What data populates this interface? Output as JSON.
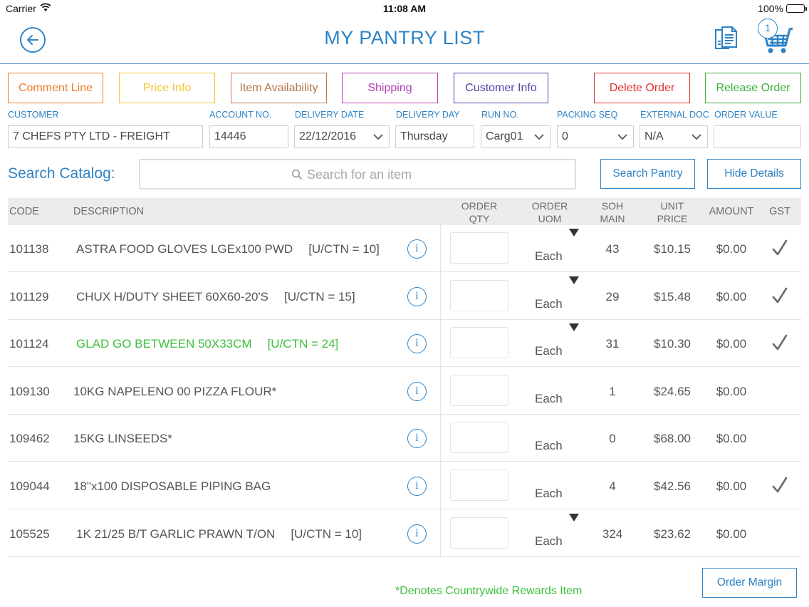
{
  "status_bar": {
    "carrier": "Carrier",
    "time": "11:08 AM",
    "battery": "100%"
  },
  "header": {
    "title": "MY PANTRY LIST",
    "cart_count": "1"
  },
  "actions": {
    "comment_line": "Comment Line",
    "price_info": "Price Info",
    "item_availability": "Item Availability",
    "shipping": "Shipping",
    "customer_info": "Customer Info",
    "delete_order": "Delete Order",
    "release_order": "Release Order"
  },
  "colors": {
    "accent": "#2f83c5",
    "comment_line": "#f07a2a",
    "price_info": "#f5c431",
    "item_availability": "#b87749",
    "shipping": "#b43fb8",
    "customer_info": "#4d47a8",
    "delete_order": "#e03131",
    "release_order": "#3cae3c",
    "rewards_green": "#3cbf3c"
  },
  "form": {
    "customer": {
      "label": "CUSTOMER",
      "value": "7 CHEFS PTY LTD - FREIGHT"
    },
    "account_no": {
      "label": "ACCOUNT NO.",
      "value": "14446"
    },
    "delivery_date": {
      "label": "DELIVERY DATE",
      "value": "22/12/2016"
    },
    "delivery_day": {
      "label": "DELIVERY DAY",
      "value": "Thursday"
    },
    "run_no": {
      "label": "RUN NO.",
      "value": "Carg01"
    },
    "packing_seq": {
      "label": "PACKING SEQ",
      "value": "0"
    },
    "external_doc": {
      "label": "EXTERNAL DOC",
      "value": "N/A"
    },
    "order_value": {
      "label": "ORDER VALUE",
      "value": ""
    }
  },
  "search": {
    "label": "Search Catalog:",
    "placeholder": "Search for an item",
    "search_pantry": "Search Pantry",
    "hide_details": "Hide Details"
  },
  "table": {
    "headers": {
      "code": "CODE",
      "description": "DESCRIPTION",
      "order_qty_1": "ORDER",
      "order_qty_2": "QTY",
      "order_uom_1": "ORDER",
      "order_uom_2": "UOM",
      "soh_1": "SOH",
      "soh_2": "MAIN",
      "unit_price_1": "UNIT",
      "unit_price_2": "PRICE",
      "amount": "AMOUNT",
      "gst": "GST"
    },
    "rows": [
      {
        "code": "101138",
        "description": "ASTRA FOOD GLOVES LGEx100 PWD",
        "uctn": "[U/CTN = 10]",
        "uom": "Each",
        "soh": "43",
        "unit_price": "$10.15",
        "amount": "$0.00",
        "gst": true,
        "uom_dropdown": true,
        "rewards": false
      },
      {
        "code": "101129",
        "description": "CHUX H/DUTY SHEET 60X60-20'S",
        "uctn": "[U/CTN = 15]",
        "uom": "Each",
        "soh": "29",
        "unit_price": "$15.48",
        "amount": "$0.00",
        "gst": true,
        "uom_dropdown": true,
        "rewards": false
      },
      {
        "code": "101124",
        "description": "GLAD GO BETWEEN 50X33CM",
        "uctn": "[U/CTN = 24]",
        "uom": "Each",
        "soh": "31",
        "unit_price": "$10.30",
        "amount": "$0.00",
        "gst": true,
        "uom_dropdown": true,
        "rewards": true
      },
      {
        "code": "109130",
        "description": "10KG NAPELENO 00 PIZZA FLOUR*",
        "uctn": "",
        "uom": "Each",
        "soh": "1",
        "unit_price": "$24.65",
        "amount": "$0.00",
        "gst": false,
        "uom_dropdown": false,
        "rewards": false
      },
      {
        "code": "109462",
        "description": "15KG LINSEEDS*",
        "uctn": "",
        "uom": "Each",
        "soh": "0",
        "unit_price": "$68.00",
        "amount": "$0.00",
        "gst": false,
        "uom_dropdown": false,
        "rewards": false
      },
      {
        "code": "109044",
        "description": "18\"x100 DISPOSABLE PIPING BAG",
        "uctn": "",
        "uom": "Each",
        "soh": "4",
        "unit_price": "$42.56",
        "amount": "$0.00",
        "gst": true,
        "uom_dropdown": false,
        "rewards": false
      },
      {
        "code": "105525",
        "description": "1K 21/25 B/T GARLIC PRAWN T/ON",
        "uctn": "[U/CTN = 10]",
        "uom": "Each",
        "soh": "324",
        "unit_price": "$23.62",
        "amount": "$0.00",
        "gst": false,
        "uom_dropdown": true,
        "rewards": false
      }
    ]
  },
  "footer": {
    "footnote": "*Denotes Countrywide Rewards Item",
    "order_margin": "Order Margin"
  }
}
